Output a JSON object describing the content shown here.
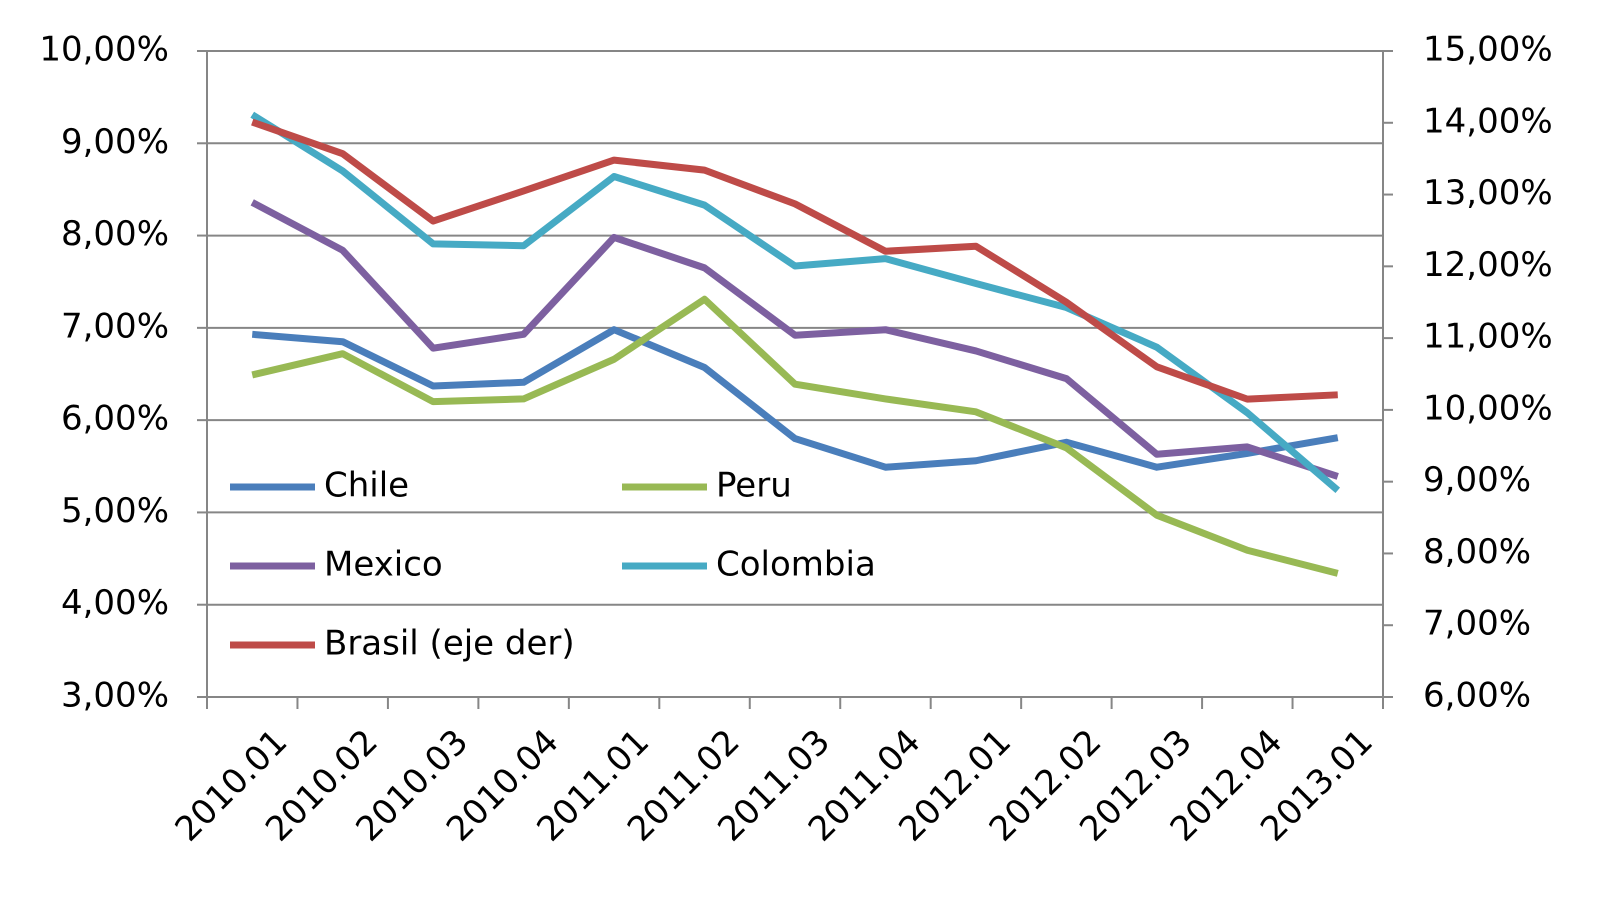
{
  "chart_data": {
    "type": "line",
    "categories": [
      "2010.01",
      "2010.02",
      "2010.03",
      "2010.04",
      "2011.01",
      "2011.02",
      "2011.03",
      "2011.04",
      "2012.01",
      "2012.02",
      "2012.03",
      "2012.04",
      "2013.01"
    ],
    "series": [
      {
        "name": "Chile",
        "color": "#4a7ebb",
        "values": [
          6.93,
          6.85,
          6.37,
          6.41,
          6.98,
          6.57,
          5.8,
          5.49,
          5.56,
          5.76,
          5.49,
          5.64,
          5.81
        ]
      },
      {
        "name": "Peru",
        "color": "#98b954",
        "values": [
          6.49,
          6.72,
          6.2,
          6.23,
          6.66,
          7.31,
          6.39,
          6.23,
          6.09,
          5.7,
          4.97,
          4.59,
          4.34
        ]
      },
      {
        "name": "Mexico",
        "color": "#7d60a0",
        "values": [
          8.36,
          7.84,
          6.78,
          6.93,
          7.98,
          7.65,
          6.92,
          6.98,
          6.75,
          6.45,
          5.63,
          5.71,
          5.39
        ]
      },
      {
        "name": "Colombia",
        "color": "#46aac4",
        "values": [
          9.31,
          8.7,
          7.91,
          7.89,
          8.64,
          8.33,
          7.67,
          7.75,
          7.48,
          7.22,
          6.79,
          6.08,
          5.24
        ]
      },
      {
        "name": "Brasil (eje der)",
        "color": "#be4b48",
        "axis": "y2",
        "values": [
          14.01,
          13.57,
          12.63,
          13.05,
          13.48,
          13.34,
          12.87,
          12.21,
          12.28,
          11.5,
          10.6,
          10.15,
          10.21
        ]
      }
    ],
    "ylim": [
      3,
      10
    ],
    "yticks": [
      {
        "value": 3,
        "label": "3,00%"
      },
      {
        "value": 4,
        "label": "4,00%"
      },
      {
        "value": 5,
        "label": "5,00%"
      },
      {
        "value": 6,
        "label": "6,00%"
      },
      {
        "value": 7,
        "label": "7,00%"
      },
      {
        "value": 8,
        "label": "8,00%"
      },
      {
        "value": 9,
        "label": "9,00%"
      },
      {
        "value": 10,
        "label": "10,00%"
      }
    ],
    "y2lim": [
      6,
      15
    ],
    "y2ticks": [
      {
        "value": 6,
        "label": "6,00%"
      },
      {
        "value": 7,
        "label": "7,00%"
      },
      {
        "value": 8,
        "label": "8,00%"
      },
      {
        "value": 9,
        "label": "9,00%"
      },
      {
        "value": 10,
        "label": "10,00%"
      },
      {
        "value": 11,
        "label": "11,00%"
      },
      {
        "value": 12,
        "label": "12,00%"
      },
      {
        "value": 13,
        "label": "13,00%"
      },
      {
        "value": 14,
        "label": "14,00%"
      },
      {
        "value": 15,
        "label": "15,00%"
      }
    ],
    "grid": true
  }
}
